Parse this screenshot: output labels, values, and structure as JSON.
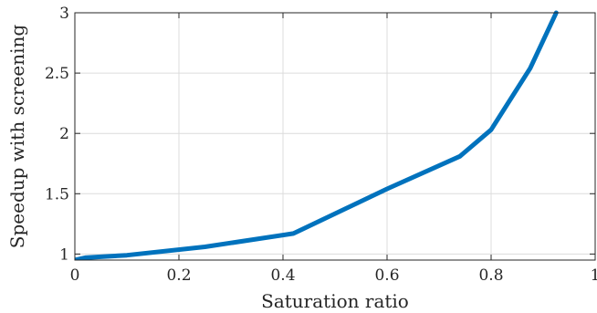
{
  "chart_data": {
    "type": "line",
    "title": "",
    "xlabel": "Saturation ratio",
    "ylabel": "Speedup with screening",
    "xlim": [
      0,
      1
    ],
    "ylim": [
      0.95,
      3
    ],
    "xticks": [
      0,
      0.2,
      0.4,
      0.6,
      0.8,
      1
    ],
    "xtick_labels": [
      "0",
      "0.2",
      "0.4",
      "0.6",
      "0.8",
      "1"
    ],
    "yticks": [
      1,
      1.5,
      2,
      2.5,
      3
    ],
    "ytick_labels": [
      "1",
      "1.5",
      "2",
      "2.5",
      "3"
    ],
    "grid": true,
    "series": [
      {
        "color": "#0072bd",
        "x": [
          0,
          0.02,
          0.1,
          0.25,
          0.42,
          0.6,
          0.74,
          0.8,
          0.875,
          0.925
        ],
        "y": [
          0.95,
          0.97,
          0.99,
          1.06,
          1.17,
          1.54,
          1.81,
          2.03,
          2.54,
          3.0
        ]
      }
    ]
  }
}
